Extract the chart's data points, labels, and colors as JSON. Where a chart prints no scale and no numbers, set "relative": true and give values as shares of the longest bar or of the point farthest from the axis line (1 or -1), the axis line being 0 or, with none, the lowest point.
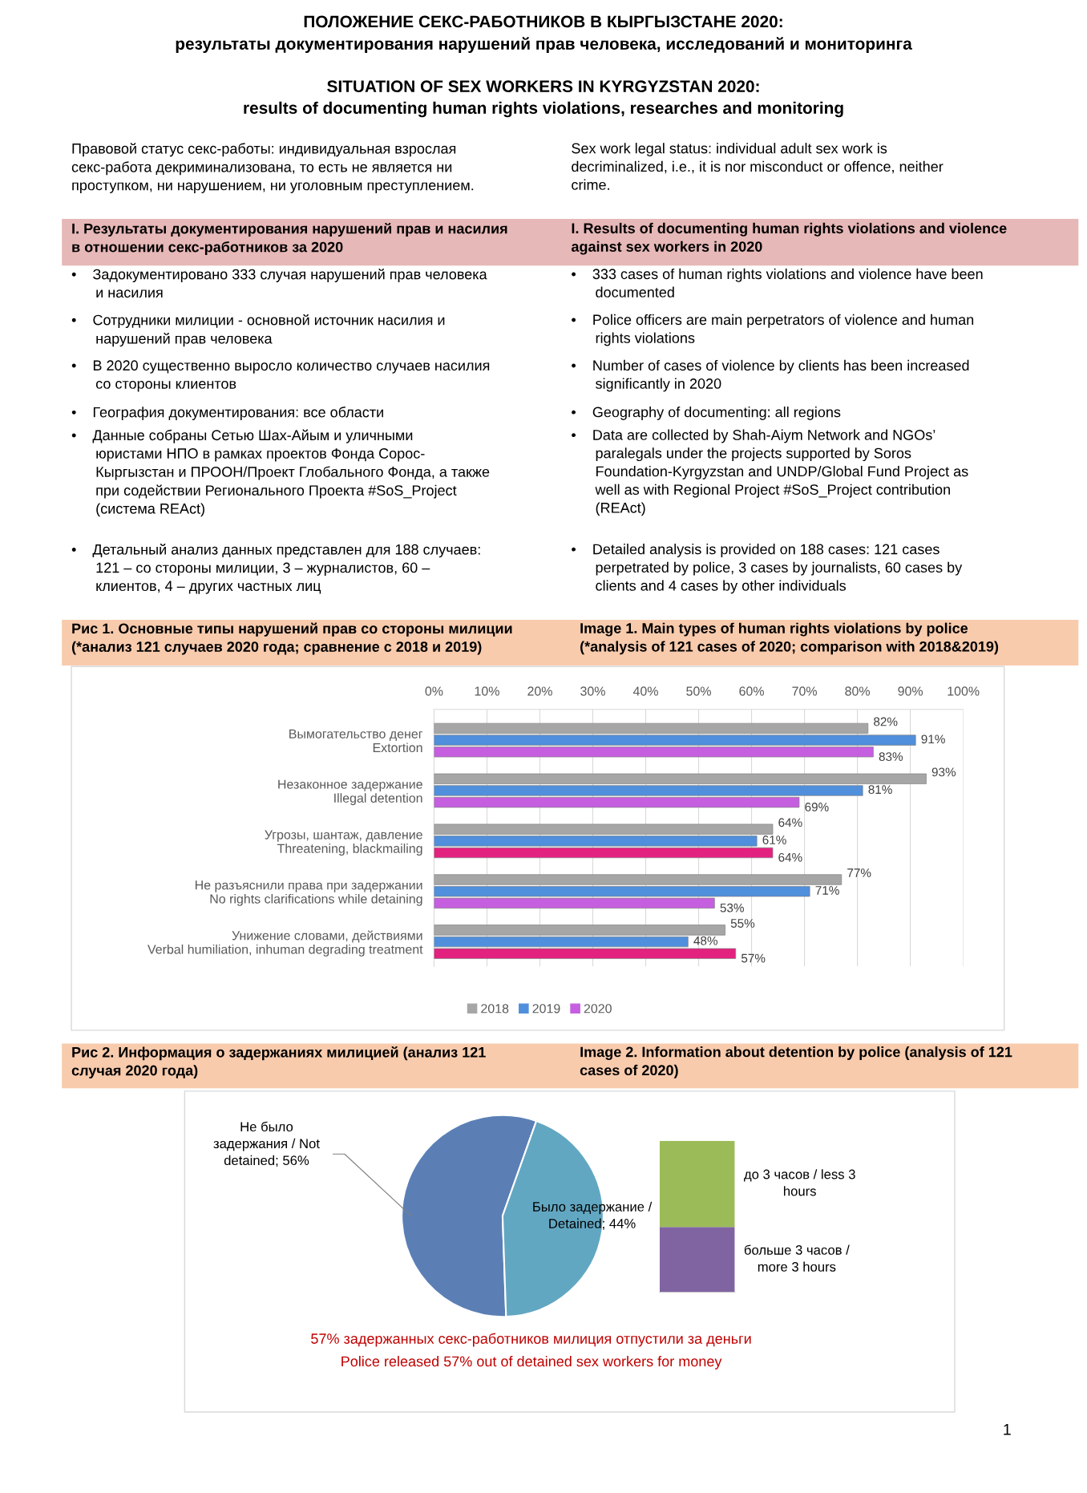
{
  "chart_data": [
    {
      "type": "other",
      "title": "ПОЛОЖЕНИЕ СЕКС-РАБОТНИКОВ В КЫРГЫЗСТАНЕ 2020:\nрезультаты документирования нарушений прав человека, исследований и мониторинга",
      "subtitle": "SITUATION OF SEX WORKERS IN KYRGYZSTAN 2020:\nresults of documenting human rights violations, researches and monitoring",
      "annotations": [
        "Правовой статус секс-работы: индивидуальная взрослая\nсекс-работа декриминализована, то есть не является ни\nпроступком, ни нарушением, ни уголовным преступлением.",
        "Sex work legal status: individual adult sex work is\ndecriminalized, i.e., it is nor misconduct or offence, neither\ncrime.",
        "I. Результаты документирования нарушений прав и насилия\nв отношении секс-работников за 2020",
        "I. Results of documenting human rights violations and violence\nagainst sex workers in 2020",
        "•    Задокументировано 333 случая нарушений прав человека\n      и насилия",
        "•    333 cases of human rights violations and violence have been\n      documented",
        "•    Сотрудники милиции - основной источник насилия и\n      нарушений прав человека",
        "•    Police officers are main perpetrators of violence and human\n      rights violations",
        "•    В 2020 существенно выросло количество случаев насилия\n      со стороны клиентов",
        "•    Number of cases of violence by clients has been increased\n      significantly in 2020",
        "•    География документирования: все области",
        "•    Geography of documenting: all regions",
        "•    Данные собраны Сетью Шах-Айым и уличными\n      юристами НПО в рамках проектов Фонда Сорос-\n      Кыргызстан и ПРООН/Проект Глобального Фонда, а также\n      при содействии Регионального Проекта #SoS_Project\n      (система REAct)",
        "•    Data are collected by Shah-Aiym Network and NGOs’\n      paralegals under the projects supported by Soros\n      Foundation-Kyrgyzstan and UNDP/Global Fund Project as\n      well as with Regional Project #SoS_Project contribution\n      (REAct)",
        "•    Детальный анализ данных представлен для 188 случаев:\n      121 – со стороны милиции, 3 – журналистов, 60 –\n      клиентов, 4 – других частных лиц",
        "•    Detailed analysis is provided on 188 cases: 121 cases\n      perpetrated by police, 3 cases by journalists, 60 cases by\n      clients and 4 cases by other individuals",
        "1"
      ]
    },
    {
      "type": "bar",
      "orientation": "horizontal",
      "title": "Рис 1. Основные типы нарушений прав со стороны милиции\n(*анализ 121 случаев 2020 года; сравнение с 2018 и 2019)",
      "subtitle": "Image 1. Main types of human rights violations by police\n(*analysis of 121 cases of 2020; comparison with 2018&2019)",
      "categories": [
        "Вымогательство денег\nExtortion",
        "Незаконное задержание\nIllegal detention",
        "Угрозы, шантаж, давление\nThreatening, blackmailing",
        "Не разъяснили права при задержании\nNo rights clarifications while detaining",
        "Унижение словами, действиями\nVerbal humiliation, inhuman degrading treatment"
      ],
      "series": [
        {
          "name": "2018",
          "color": "#a6a6a6",
          "values": [
            82,
            93,
            64,
            77,
            55
          ],
          "value_labels": [
            "82%",
            "93%",
            "64%",
            "77%",
            "55%"
          ]
        },
        {
          "name": "2019",
          "color": "#4f8fdc",
          "values": [
            91,
            81,
            61,
            71,
            48
          ],
          "value_labels": [
            "91%",
            "81%",
            "61%",
            "71%",
            "48%"
          ]
        },
        {
          "name": "2020",
          "color": "#c55fe0",
          "colors": [
            "#c55fe0",
            "#c55fe0",
            "#e3217f",
            "#c55fe0",
            "#e3217f"
          ],
          "values": [
            83,
            69,
            64,
            53,
            57
          ],
          "value_labels": [
            "83%",
            "69%",
            "64%",
            "53%",
            "57%"
          ]
        }
      ],
      "xlim": [
        0,
        100
      ],
      "xticks": [
        {
          "value": 0,
          "label": "0%"
        },
        {
          "value": 10,
          "label": "10%"
        },
        {
          "value": 20,
          "label": "20%"
        },
        {
          "value": 30,
          "label": "30%"
        },
        {
          "value": 40,
          "label": "40%"
        },
        {
          "value": 50,
          "label": "50%"
        },
        {
          "value": 60,
          "label": "60%"
        },
        {
          "value": 70,
          "label": "70%"
        },
        {
          "value": 80,
          "label": "80%"
        },
        {
          "value": 90,
          "label": "90%"
        },
        {
          "value": 100,
          "label": "100%"
        }
      ],
      "grid": "x",
      "legend": "bottom"
    },
    {
      "type": "pie",
      "title": "Рис 2. Информация о задержаниях милицией (анализ 121\nслучая 2020 года)",
      "subtitle": "Image 2. Information about detention by police (analysis of 121\ncases of 2020)",
      "categories": [
        "Не было\nзадержания / Not\ndetained",
        "Было задержание /\nDetained"
      ],
      "values": [
        56,
        44
      ],
      "value_labels": [
        "56%",
        "44%"
      ],
      "colors": [
        "#5b7fb5",
        "#62a7c2"
      ],
      "annotations": [
        "57% задержанных секс-работников милиция отпустили за деньги",
        "Police released 57% out of detained sex workers for money"
      ]
    },
    {
      "type": "bar",
      "stacked": true,
      "relative": true,
      "categories": [
        null
      ],
      "series": [
        {
          "name": "больше 3 часов /\nmore 3 hours",
          "color": "#8064a2",
          "values": [
            0.43
          ]
        },
        {
          "name": "до 3 часов / less 3\nhours",
          "color": "#9bbb59",
          "values": [
            0.57
          ]
        }
      ]
    }
  ]
}
